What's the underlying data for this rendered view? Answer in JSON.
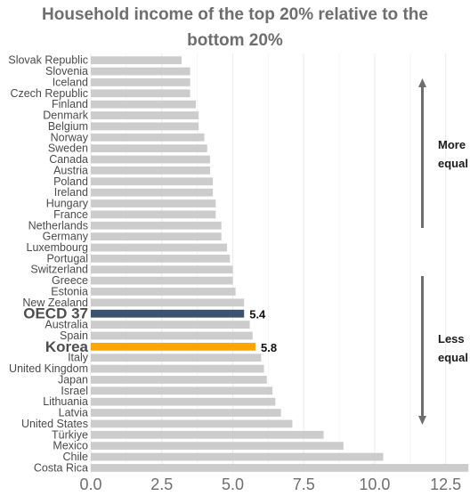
{
  "chart_data": {
    "type": "bar",
    "orientation": "horizontal",
    "title_lines": [
      "Household income of the top 20% relative to the",
      "bottom 20%"
    ],
    "categories": [
      "Slovak Republic",
      "Slovenia",
      "Iceland",
      "Czech Republic",
      "Finland",
      "Denmark",
      "Belgium",
      "Norway",
      "Sweden",
      "Canada",
      "Austria",
      "Poland",
      "Ireland",
      "Hungary",
      "France",
      "Netherlands",
      "Germany",
      "Luxembourg",
      "Portugal",
      "Switzerland",
      "Greece",
      "Estonia",
      "New Zealand",
      "OECD 37",
      "Australia",
      "Spain",
      "Korea",
      "Italy",
      "United Kingdom",
      "Japan",
      "Israel",
      "Lithuania",
      "Latvia",
      "United States",
      "Türkiye",
      "Mexico",
      "Chile",
      "Costa Rica"
    ],
    "values": [
      3.2,
      3.5,
      3.5,
      3.5,
      3.7,
      3.8,
      3.8,
      4.0,
      4.1,
      4.2,
      4.2,
      4.3,
      4.3,
      4.4,
      4.4,
      4.6,
      4.6,
      4.8,
      4.9,
      5.0,
      5.0,
      5.1,
      5.4,
      5.4,
      5.6,
      5.7,
      5.8,
      6.0,
      6.1,
      6.2,
      6.4,
      6.5,
      6.7,
      7.1,
      8.2,
      8.9,
      10.3,
      13.3
    ],
    "highlights": [
      {
        "category": "OECD 37",
        "value_label": "5.4",
        "color": "#3d5170"
      },
      {
        "category": "Korea",
        "value_label": "5.8",
        "color": "#ffa500"
      }
    ],
    "bar_color": "#cccccc",
    "xlim": [
      0,
      13.2
    ],
    "x_ticks": [
      "0.0",
      "2.5",
      "5.0",
      "7.5",
      "10.0",
      "12.5"
    ],
    "grid": true,
    "annotations": {
      "more_equal": [
        "More",
        "equal"
      ],
      "less_equal": [
        "Less",
        "equal"
      ],
      "arrow_color": "#6e6e6e"
    }
  }
}
